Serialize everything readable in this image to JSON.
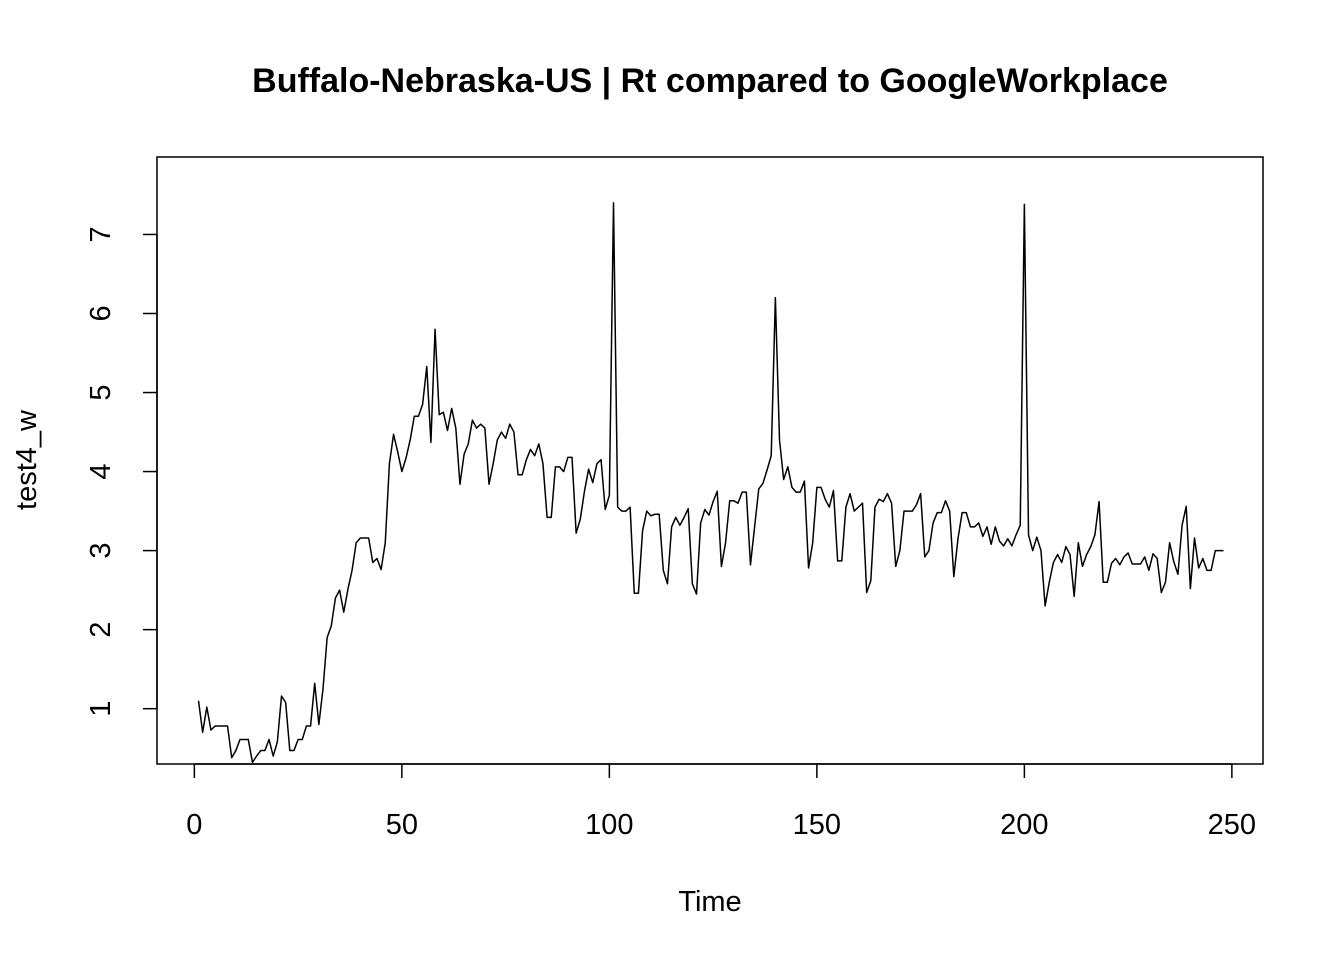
{
  "chart_data": {
    "type": "line",
    "title": "Buffalo-Nebraska-US | Rt compared to GoogleWorkplace",
    "xlabel": "Time",
    "ylabel": "test4_w",
    "xlim": [
      -9,
      257.5
    ],
    "ylim": [
      0.3,
      7.98
    ],
    "x_ticks": [
      0,
      50,
      100,
      150,
      200,
      250
    ],
    "y_ticks": [
      1,
      2,
      3,
      4,
      5,
      6,
      7
    ],
    "grid": false,
    "legend": "none",
    "line_color": "#000000",
    "series": [
      {
        "x_start": 1,
        "x_step": 1,
        "values": [
          1.1,
          0.7,
          1.02,
          0.73,
          0.78,
          0.78,
          0.78,
          0.78,
          0.38,
          0.47,
          0.61,
          0.61,
          0.61,
          0.32,
          0.4,
          0.47,
          0.47,
          0.61,
          0.4,
          0.58,
          1.16,
          1.08,
          0.47,
          0.47,
          0.61,
          0.61,
          0.78,
          0.78,
          1.32,
          0.8,
          1.25,
          1.9,
          2.05,
          2.4,
          2.5,
          2.22,
          2.51,
          2.75,
          3.1,
          3.16,
          3.16,
          3.16,
          2.85,
          2.9,
          2.76,
          3.1,
          4.1,
          4.47,
          4.25,
          4.0,
          4.17,
          4.4,
          4.7,
          4.7,
          4.85,
          5.33,
          4.37,
          5.8,
          4.72,
          4.75,
          4.52,
          4.8,
          4.55,
          3.84,
          4.22,
          4.35,
          4.65,
          4.55,
          4.6,
          4.55,
          3.84,
          4.1,
          4.4,
          4.5,
          4.42,
          4.6,
          4.5,
          3.96,
          3.96,
          4.15,
          4.28,
          4.2,
          4.35,
          4.1,
          3.42,
          3.42,
          4.06,
          4.06,
          4.0,
          4.18,
          4.18,
          3.22,
          3.4,
          3.75,
          4.03,
          3.86,
          4.1,
          4.15,
          3.52,
          3.7,
          7.4,
          3.55,
          3.5,
          3.5,
          3.55,
          2.46,
          2.46,
          3.25,
          3.5,
          3.44,
          3.46,
          3.46,
          2.75,
          2.58,
          3.3,
          3.42,
          3.32,
          3.42,
          3.53,
          2.58,
          2.45,
          3.35,
          3.52,
          3.45,
          3.62,
          3.75,
          2.8,
          3.1,
          3.63,
          3.63,
          3.6,
          3.74,
          3.74,
          2.82,
          3.3,
          3.78,
          3.85,
          4.02,
          4.2,
          6.2,
          4.4,
          3.9,
          4.06,
          3.8,
          3.74,
          3.74,
          3.88,
          2.78,
          3.1,
          3.8,
          3.8,
          3.65,
          3.55,
          3.76,
          2.87,
          2.87,
          3.55,
          3.72,
          3.5,
          3.55,
          3.6,
          2.47,
          2.62,
          3.55,
          3.65,
          3.62,
          3.72,
          3.6,
          2.8,
          3.0,
          3.5,
          3.5,
          3.5,
          3.58,
          3.72,
          2.92,
          3.0,
          3.35,
          3.48,
          3.48,
          3.63,
          3.5,
          2.67,
          3.15,
          3.48,
          3.48,
          3.3,
          3.3,
          3.35,
          3.18,
          3.3,
          3.08,
          3.3,
          3.12,
          3.06,
          3.15,
          3.06,
          3.2,
          3.32,
          7.38,
          3.2,
          3.0,
          3.17,
          3.0,
          2.3,
          2.6,
          2.85,
          2.95,
          2.85,
          3.05,
          2.95,
          2.42,
          3.1,
          2.8,
          2.95,
          3.05,
          3.2,
          3.62,
          2.6,
          2.6,
          2.84,
          2.9,
          2.82,
          2.92,
          2.97,
          2.83,
          2.83,
          2.83,
          2.92,
          2.75,
          2.96,
          2.9,
          2.47,
          2.6,
          3.1,
          2.86,
          2.7,
          3.32,
          3.56,
          2.52,
          3.16,
          2.78,
          2.9,
          2.75,
          2.75,
          3.0,
          3.0,
          3.0
        ]
      }
    ]
  }
}
